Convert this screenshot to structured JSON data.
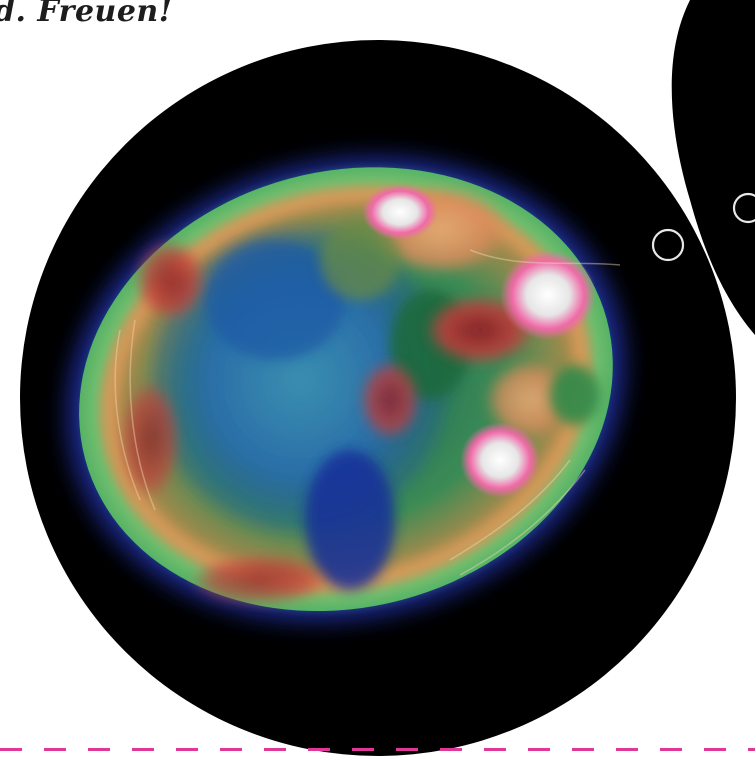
{
  "headline": "d. Freuen!",
  "colors": {
    "background": "#ffffff",
    "dark_shape": "#000000",
    "divider_accent": "#e0379b",
    "headline_text": "#1d1d1d"
  },
  "image": {
    "subject": "heatmap-overlay-brain-scan"
  }
}
